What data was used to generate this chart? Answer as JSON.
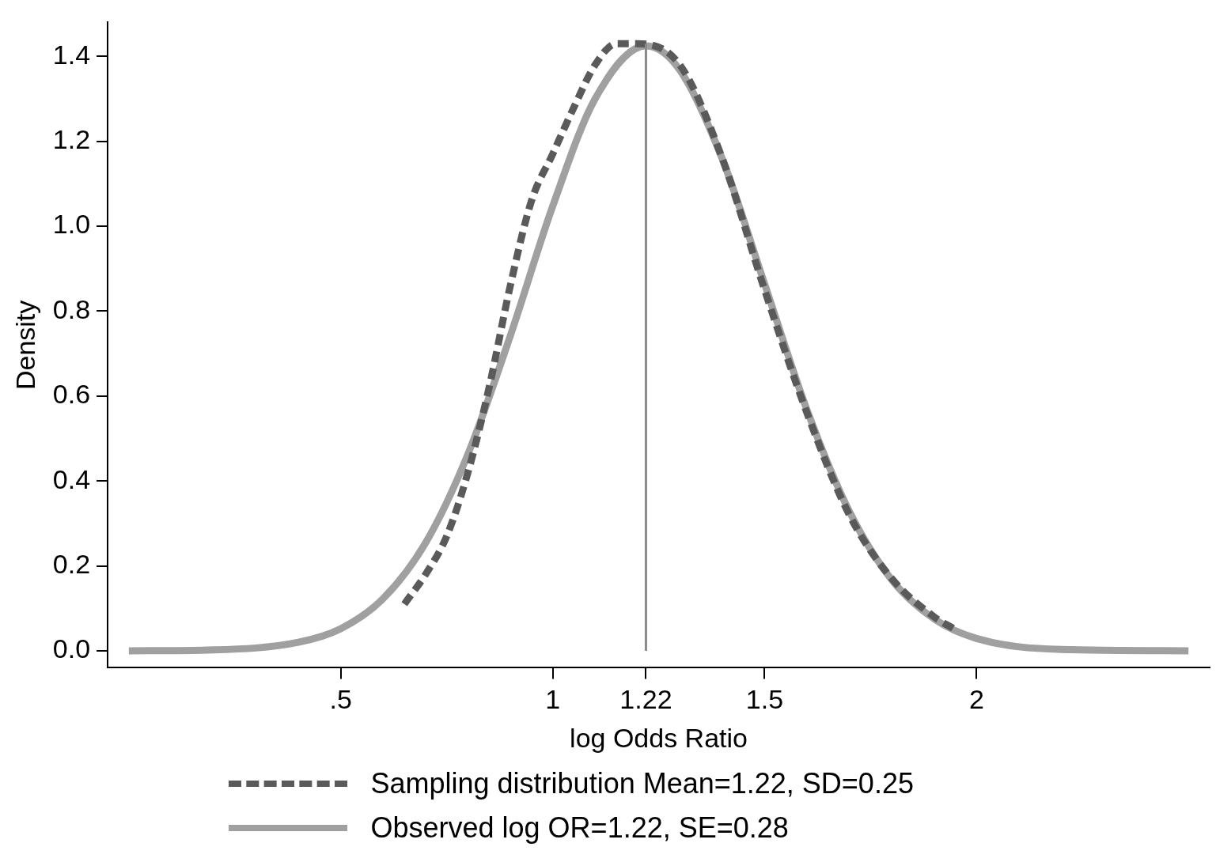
{
  "chart_data": {
    "type": "line",
    "xlabel": "log Odds Ratio",
    "ylabel": "Density",
    "xlim": [
      -0.05,
      2.55
    ],
    "ylim": [
      -0.04,
      1.48
    ],
    "xticks": [
      {
        "value": 0.5,
        "label": ".5"
      },
      1,
      1.22,
      1.5,
      2
    ],
    "yticks": [
      {
        "value": 0,
        "label": "0.0"
      },
      0.2,
      0.4,
      0.6,
      0.8,
      {
        "value": 1,
        "label": "1.0"
      },
      1.2,
      1.4
    ],
    "grid": false,
    "legend": "bottom",
    "marker": "none",
    "ref_lines": [
      {
        "axis": "x",
        "value": 1.22,
        "color": "#8a8a8a"
      }
    ],
    "series": [
      {
        "name": "Sampling distribution Mean=1.22, SD=0.25",
        "color": "#5a5a5a",
        "line_style": "dashed",
        "x": [
          0.65,
          0.7,
          0.75,
          0.8,
          0.85,
          0.9,
          0.95,
          1.0,
          1.05,
          1.1,
          1.15,
          1.2,
          1.3,
          1.4,
          1.5,
          1.6,
          1.7,
          1.8,
          1.9,
          1.95
        ],
        "values": [
          0.11,
          0.18,
          0.27,
          0.42,
          0.62,
          0.86,
          1.06,
          1.17,
          1.28,
          1.38,
          1.43,
          1.43,
          1.38,
          1.16,
          0.85,
          0.56,
          0.32,
          0.17,
          0.08,
          0.05
        ]
      },
      {
        "name": "Observed log OR=1.22, SE=0.28",
        "color": "#a0a0a0",
        "line_style": "solid",
        "x": [
          0,
          0.2,
          0.4,
          0.5,
          0.6,
          0.7,
          0.8,
          0.9,
          1.0,
          1.1,
          1.22,
          1.3,
          1.4,
          1.5,
          1.6,
          1.7,
          1.8,
          1.9,
          2.0,
          2.2,
          2.5
        ],
        "values": [
          0,
          0.002,
          0.02,
          0.052,
          0.123,
          0.254,
          0.463,
          0.742,
          1.047,
          1.3,
          1.425,
          1.368,
          1.159,
          0.864,
          0.567,
          0.328,
          0.167,
          0.075,
          0.029,
          0.003,
          0
        ]
      }
    ]
  }
}
